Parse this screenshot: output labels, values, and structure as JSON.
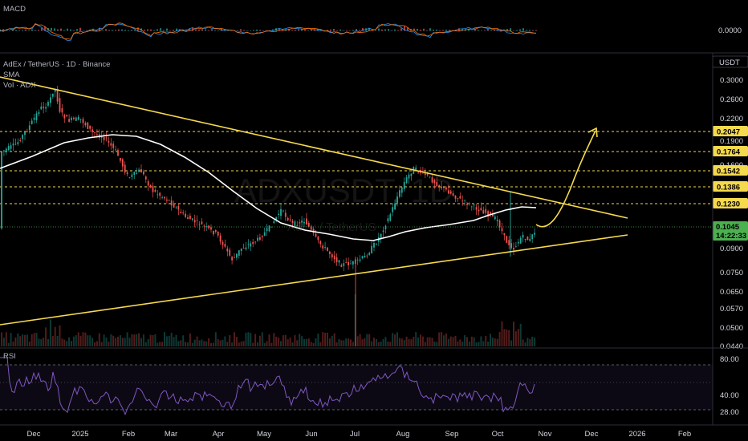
{
  "chart": {
    "symbol_title": "AdEx / TetherUS · 1D · Binance",
    "indicators": [
      "SMA",
      "Vol · ADX"
    ],
    "quote_currency": "USDT",
    "watermark": "ADXUSDT, 1D",
    "watermark_sub": "AdEx / TetherUS",
    "current_price": "0.1045",
    "countdown": "14:22:33",
    "macd_label": "MACD",
    "macd_value": "0.0000",
    "rsi_label": "RSI",
    "price_ticks": [
      "0.3000",
      "0.2600",
      "0.2200",
      "0.1900",
      "0.1600",
      "0.1386",
      "0.1230",
      "0.1045",
      "0.0900",
      "0.0750",
      "0.0650",
      "0.0570",
      "0.0500",
      "0.0440"
    ],
    "levels": [
      "0.2047",
      "0.1764",
      "0.1542",
      "0.1386",
      "0.1230"
    ],
    "rsi_ticks": [
      "80.00",
      "40.00",
      "28.00"
    ],
    "time_labels": [
      "Dec",
      "2025",
      "Feb",
      "Mar",
      "Apr",
      "May",
      "Jun",
      "Jul",
      "Aug",
      "Sep",
      "Oct",
      "Nov",
      "Dec",
      "2026",
      "Feb"
    ],
    "colors": {
      "background": "#000000",
      "up": "#26a69a",
      "down": "#ef5350",
      "trendline": "#f5d94e",
      "level_line": "#f5d94e",
      "sma": "#ffffff",
      "rsi": "#7e57c2",
      "current_price": "#4caf50"
    },
    "icons": {
      "arrow": "curved-up-arrow-icon"
    }
  }
}
